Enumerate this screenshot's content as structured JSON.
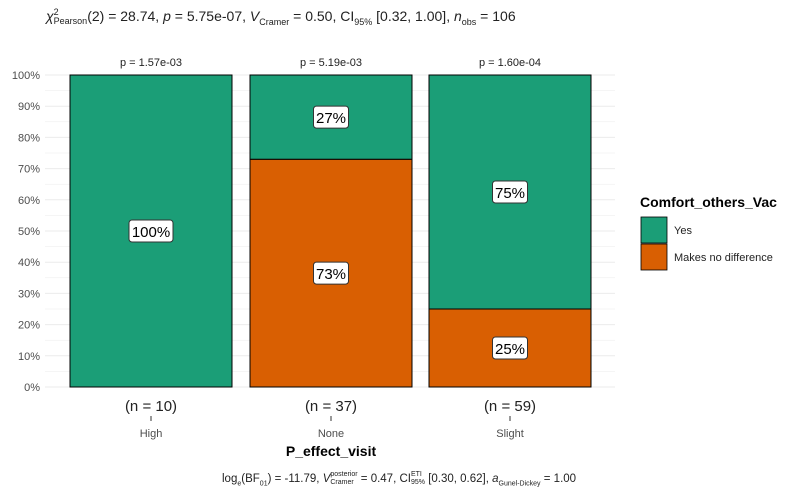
{
  "chart_data": {
    "type": "bar",
    "stacked": true,
    "percent": true,
    "subtitle": {
      "chi_label": "χ",
      "chi_sup": "2",
      "chi_sub": "Pearson",
      "chi_val": "(2) = 28.74, ",
      "p_label": "p",
      "p_val": " = 5.75e-07, ",
      "v_label": "V",
      "v_sub": "Cramer",
      "v_val": " = 0.50, CI",
      "ci_sub": "95%",
      "ci_val": " [0.32, 1.00], ",
      "n_label": "n",
      "n_sub": "obs",
      "n_val": " = 106"
    },
    "caption": {
      "log": "log",
      "log_sub": "e",
      "bf": "(BF",
      "bf_sub": "01",
      "bf_val": ") = -11.79, ",
      "v_label": "V",
      "v_sup": "posterior",
      "v_sub": "Cramer",
      "v_val": " = 0.47, CI",
      "ci_sup": "ETI",
      "ci_sub": "95%",
      "ci_val": " [0.30, 0.62], ",
      "a_label": "a",
      "a_sub": "Gunel-Dickey",
      "a_val": " = 1.00"
    },
    "xlabel": "P_effect_visit",
    "ylabel": "",
    "ylim": [
      0,
      100
    ],
    "yticks": [
      "0%",
      "10%",
      "20%",
      "30%",
      "40%",
      "50%",
      "60%",
      "70%",
      "80%",
      "90%",
      "100%"
    ],
    "categories": [
      "High",
      "None",
      "Slight"
    ],
    "counts": [
      "(n = 10)",
      "(n = 37)",
      "(n = 59)"
    ],
    "pvalues": [
      "p = 1.57e-03",
      "p = 5.19e-03",
      "p = 1.60e-04"
    ],
    "series": [
      {
        "name": "Makes no difference",
        "color": "#d95f02",
        "values": [
          0,
          73,
          25
        ],
        "labels": [
          "",
          "73%",
          "25%"
        ]
      },
      {
        "name": "Yes",
        "color": "#1b9e77",
        "values": [
          100,
          27,
          75
        ],
        "labels": [
          "100%",
          "27%",
          "75%"
        ]
      }
    ],
    "legend": {
      "title": "Comfort_others_Vac",
      "position": "right",
      "items": [
        "Yes",
        "Makes no difference"
      ]
    },
    "grid": true
  }
}
